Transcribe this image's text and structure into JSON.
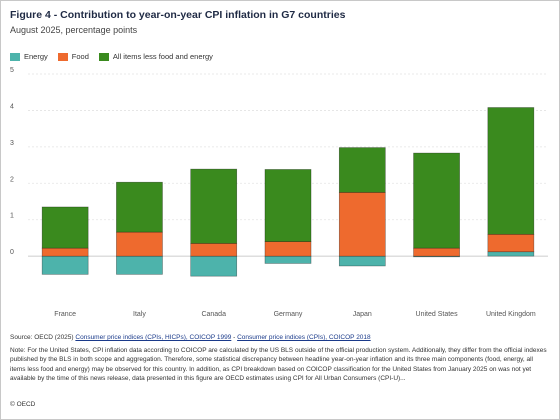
{
  "title": "Figure 4 - Contribution to year-on-year CPI inflation in G7 countries",
  "subtitle": "August 2025, percentage points",
  "legend": [
    {
      "label": "Energy",
      "color": "#4db3ab"
    },
    {
      "label": "Food",
      "color": "#ee6a2e"
    },
    {
      "label": "All items less food and energy",
      "color": "#3a8a1e"
    }
  ],
  "chart_data": {
    "type": "bar",
    "stacked": true,
    "categories": [
      "France",
      "Italy",
      "Canada",
      "Germany",
      "Japan",
      "United States",
      "United Kingdom"
    ],
    "series": [
      {
        "name": "Energy",
        "color": "#4db3ab",
        "values": [
          -0.5,
          -0.5,
          -0.55,
          -0.2,
          -0.27,
          -0.02,
          0.12
        ]
      },
      {
        "name": "Food",
        "color": "#ee6a2e",
        "values": [
          0.22,
          0.66,
          0.35,
          0.4,
          1.75,
          0.22,
          0.48
        ]
      },
      {
        "name": "All items less food and energy",
        "color": "#3a8a1e",
        "values": [
          1.13,
          1.37,
          2.04,
          1.98,
          1.23,
          2.61,
          3.48
        ]
      }
    ],
    "ylim": [
      -0.6,
      5
    ],
    "yticks": [
      0,
      1,
      2,
      3,
      4,
      5
    ],
    "grid": true,
    "legend_position": "top-left",
    "xlabel": "",
    "ylabel": ""
  },
  "footer": {
    "source_prefix": "Source: OECD (2025) ",
    "source_link1": "Consumer price indices (CPIs, HICPs), COICOP 1999",
    "source_sep": " - ",
    "source_link2": "Consumer price indices (CPIs), COICOP 2018",
    "note": "Note: For the United States, CPI inflation data according to COICOP are calculated by the US BLS outside of the official production system. Additionally, they differ from the official indexes published by the BLS in both scope and aggregation. Therefore, some statistical discrepancy between headline year-on-year inflation and its three main components (food, energy, all items less food and energy) may be observed for this country. In addition, as CPI breakdown based on COICOP classification for the United States from January 2025 on was not yet available by the time of this news release, data presented in this figure are OECD estimates using CPI for All Urban Consumers (CPI-U)...",
    "copyright": "© OECD"
  }
}
